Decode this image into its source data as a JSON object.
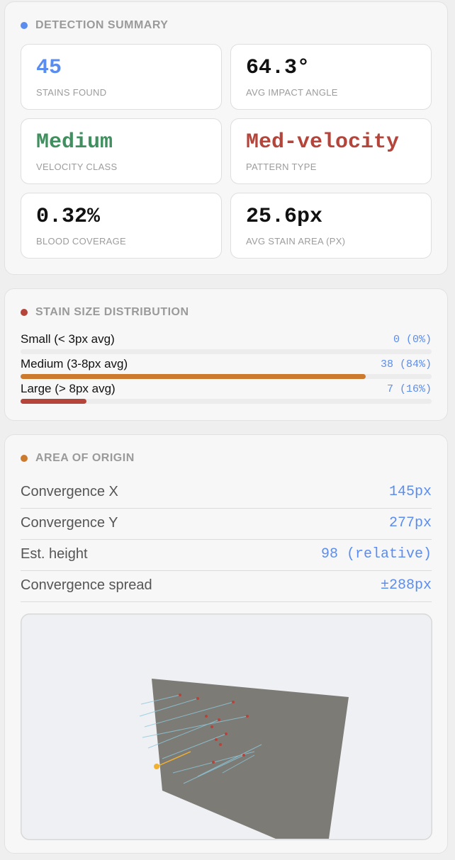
{
  "summary": {
    "title": "DETECTION SUMMARY",
    "tiles": [
      {
        "value": "45",
        "label": "STAINS FOUND"
      },
      {
        "value": "64.3°",
        "label": "AVG IMPACT ANGLE"
      },
      {
        "value": "Medium",
        "label": "VELOCITY CLASS"
      },
      {
        "value": "Med-velocity",
        "label": "PATTERN TYPE"
      },
      {
        "value": "0.32%",
        "label": "BLOOD COVERAGE"
      },
      {
        "value": "25.6px",
        "label": "AVG STAIN AREA (PX)"
      }
    ]
  },
  "distribution": {
    "title": "STAIN SIZE DISTRIBUTION",
    "rows": [
      {
        "label": "Small (< 3px avg)",
        "value": "0 (0%)",
        "percent": 0
      },
      {
        "label": "Medium (3-8px avg)",
        "value": "38 (84%)",
        "percent": 84
      },
      {
        "label": "Large (> 8px avg)",
        "value": "7 (16%)",
        "percent": 16
      }
    ]
  },
  "origin": {
    "title": "AREA OF ORIGIN",
    "rows": [
      {
        "label": "Convergence X",
        "value": "145px"
      },
      {
        "label": "Convergence Y",
        "value": "277px"
      },
      {
        "label": "Est. height",
        "value": "98 (relative)"
      },
      {
        "label": "Convergence spread",
        "value": "±288px"
      }
    ]
  }
}
